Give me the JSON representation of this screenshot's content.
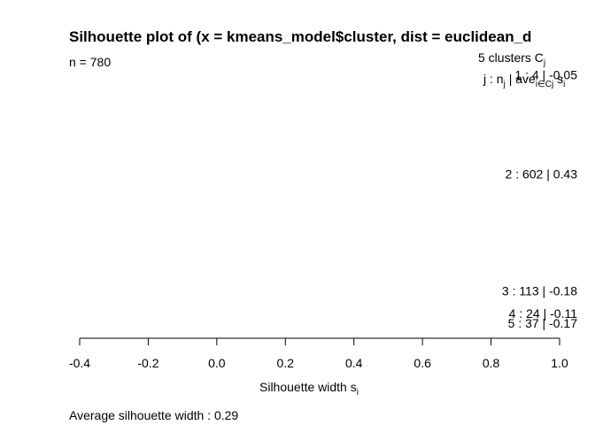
{
  "chart_data": {
    "type": "silhouette",
    "title": "Silhouette plot of (x = kmeans_model$cluster, dist = euclidean_d",
    "n_label": "n = 780",
    "header": {
      "clusters": "5  clusters  C",
      "clusters_sub": "j",
      "cols": "j : n",
      "cols_sub": "j",
      "cols_tail": " | ave",
      "cols_tail_sub": "i∈Cj",
      "cols_s": " s",
      "cols_s_sub": "i"
    },
    "clusters": [
      {
        "j": 1,
        "n": 4,
        "ave": -0.05,
        "label": "1 :   4  | -0.05"
      },
      {
        "j": 2,
        "n": 602,
        "ave": 0.43,
        "label": "2 :   602  |  0.43"
      },
      {
        "j": 3,
        "n": 113,
        "ave": -0.18,
        "label": "3 :   113  |  -0.18"
      },
      {
        "j": 4,
        "n": 24,
        "ave": -0.11,
        "label": "4 :   24  |  -0.11"
      },
      {
        "j": 5,
        "n": 37,
        "ave": -0.17,
        "label": "5 :   37  |  -0.17"
      }
    ],
    "xlim": [
      -0.4,
      1.0
    ],
    "xticks": [
      "-0.4",
      "-0.2",
      "0.0",
      "0.2",
      "0.4",
      "0.6",
      "0.8",
      "1.0"
    ],
    "xlabel": "Silhouette width s",
    "xlabel_sub": "i",
    "footer": "Average silhouette width :  0.29"
  }
}
